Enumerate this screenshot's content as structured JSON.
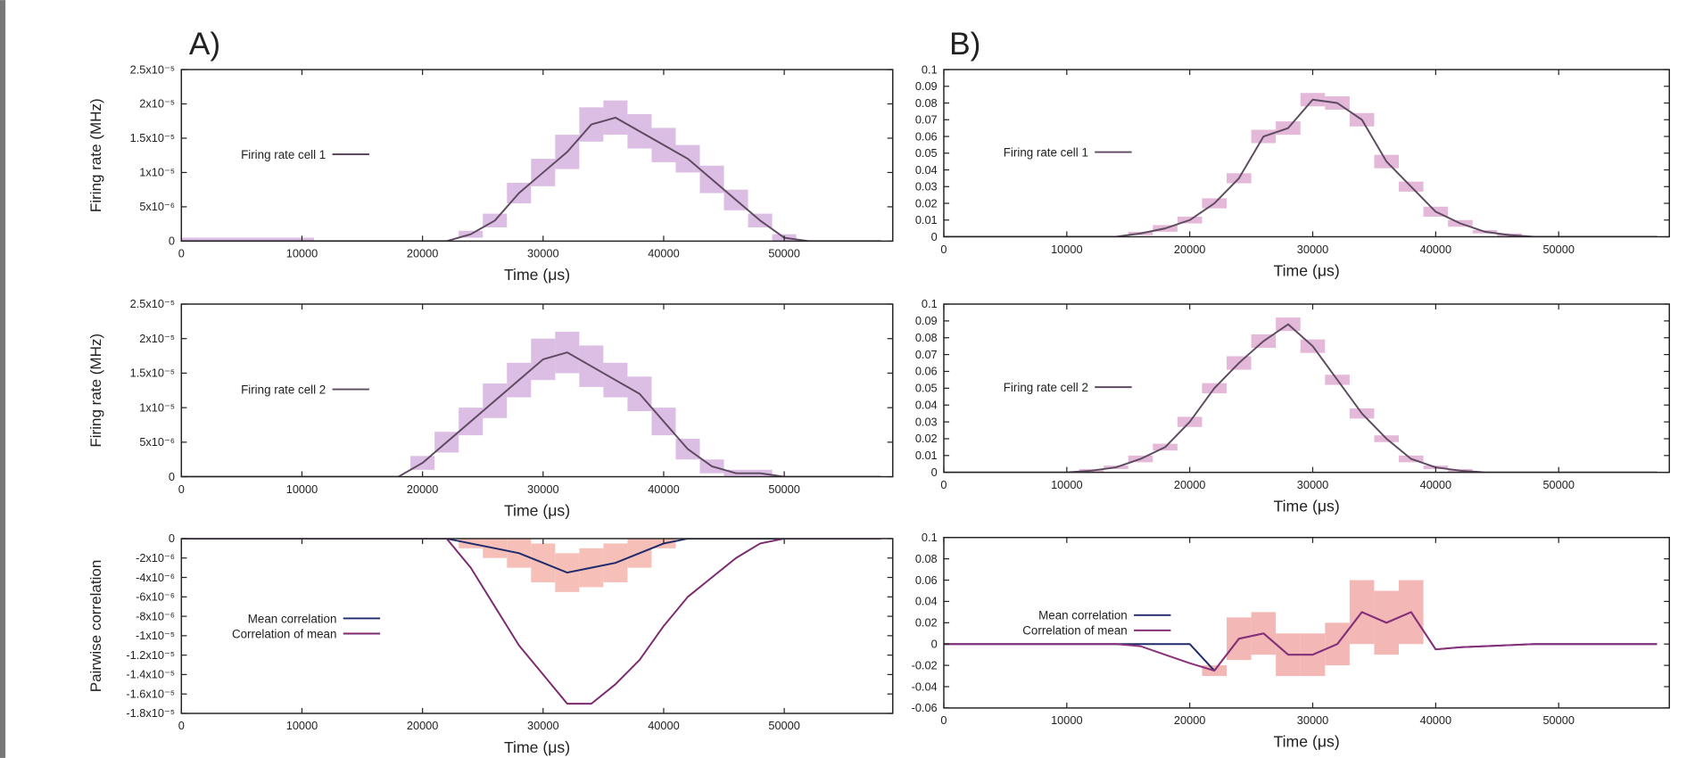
{
  "panel_labels": [
    "A)",
    "B)"
  ],
  "chart_data": [
    {
      "type": "line",
      "xlabel": "Time (μs)",
      "ylabel": "Firing rate (MHz)",
      "xlim": [
        0,
        59000
      ],
      "xticks": [
        0,
        10000,
        20000,
        30000,
        40000,
        50000
      ],
      "ylim": [
        0,
        2.5e-05
      ],
      "yticks": [
        0,
        {
          "value": 5e-06,
          "label": "5x10⁻⁶"
        },
        {
          "value": 1e-05,
          "label": "1x10⁻⁵"
        },
        {
          "value": 1.5e-05,
          "label": "1.5x10⁻⁵"
        },
        {
          "value": 2e-05,
          "label": "2x10⁻⁵"
        },
        {
          "value": 2.5e-05,
          "label": "2.5x10⁻⁵"
        }
      ],
      "x": [
        0,
        2000,
        4000,
        6000,
        8000,
        10000,
        12000,
        14000,
        16000,
        18000,
        20000,
        22000,
        24000,
        26000,
        28000,
        30000,
        32000,
        34000,
        36000,
        38000,
        40000,
        42000,
        44000,
        46000,
        48000,
        50000,
        52000,
        54000,
        56000,
        58000
      ],
      "series": [
        {
          "name": "Firing rate cell 1",
          "color": "#5e4a60",
          "band_color": "#dcbde4",
          "values": [
            0,
            0,
            0,
            0,
            0,
            0,
            0,
            0,
            0,
            0,
            0,
            0,
            1e-06,
            3e-06,
            7e-06,
            1e-05,
            1.3e-05,
            1.7e-05,
            1.8e-05,
            1.6e-05,
            1.4e-05,
            1.2e-05,
            9e-06,
            6e-06,
            3e-06,
            5e-07,
            0,
            0,
            0,
            0
          ],
          "error": [
            5e-07,
            5e-07,
            5e-07,
            5e-07,
            5e-07,
            5e-07,
            0,
            0,
            0,
            0,
            0,
            0,
            5e-07,
            1e-06,
            1.5e-06,
            2e-06,
            2.5e-06,
            2.5e-06,
            2.5e-06,
            2.5e-06,
            2.5e-06,
            2e-06,
            2e-06,
            1.5e-06,
            1e-06,
            5e-07,
            0,
            0,
            0,
            0
          ]
        }
      ]
    },
    {
      "type": "line",
      "xlabel": "Time (μs)",
      "ylabel": "Firing rate (MHz)",
      "xlim": [
        0,
        59000
      ],
      "xticks": [
        0,
        10000,
        20000,
        30000,
        40000,
        50000
      ],
      "ylim": [
        0,
        2.5e-05
      ],
      "yticks": [
        0,
        {
          "value": 5e-06,
          "label": "5x10⁻⁶"
        },
        {
          "value": 1e-05,
          "label": "1x10⁻⁵"
        },
        {
          "value": 1.5e-05,
          "label": "1.5x10⁻⁵"
        },
        {
          "value": 2e-05,
          "label": "2x10⁻⁵"
        },
        {
          "value": 2.5e-05,
          "label": "2.5x10⁻⁵"
        }
      ],
      "x": [
        0,
        2000,
        4000,
        6000,
        8000,
        10000,
        12000,
        14000,
        16000,
        18000,
        20000,
        22000,
        24000,
        26000,
        28000,
        30000,
        32000,
        34000,
        36000,
        38000,
        40000,
        42000,
        44000,
        46000,
        48000,
        50000,
        52000,
        54000,
        56000,
        58000
      ],
      "series": [
        {
          "name": "Firing rate cell 2",
          "color": "#5e4a60",
          "band_color": "#dcbde4",
          "values": [
            0,
            0,
            0,
            0,
            0,
            0,
            0,
            0,
            0,
            0,
            2e-06,
            5e-06,
            8e-06,
            1.1e-05,
            1.4e-05,
            1.7e-05,
            1.8e-05,
            1.6e-05,
            1.4e-05,
            1.2e-05,
            8e-06,
            4e-06,
            1.5e-06,
            5e-07,
            5e-07,
            0,
            0,
            0,
            0,
            0
          ],
          "error": [
            0,
            0,
            0,
            0,
            0,
            0,
            0,
            0,
            0,
            0,
            1e-06,
            1.5e-06,
            2e-06,
            2.5e-06,
            2.5e-06,
            3e-06,
            3e-06,
            3e-06,
            2.5e-06,
            2.5e-06,
            2e-06,
            1.5e-06,
            1e-06,
            5e-07,
            5e-07,
            0,
            0,
            0,
            0,
            0
          ]
        }
      ]
    },
    {
      "type": "line",
      "xlabel": "Time (μs)",
      "ylabel": "Pairwise correlation",
      "xlim": [
        0,
        59000
      ],
      "xticks": [
        0,
        10000,
        20000,
        30000,
        40000,
        50000
      ],
      "ylim": [
        -1.8e-05,
        0
      ],
      "yticks": [
        0,
        {
          "value": -2e-06,
          "label": "-2x10⁻⁶"
        },
        {
          "value": -4e-06,
          "label": "-4x10⁻⁶"
        },
        {
          "value": -6e-06,
          "label": "-6x10⁻⁶"
        },
        {
          "value": -8e-06,
          "label": "-8x10⁻⁶"
        },
        {
          "value": -1e-05,
          "label": "-1x10⁻⁵"
        },
        {
          "value": -1.2e-05,
          "label": "-1.2x10⁻⁵"
        },
        {
          "value": -1.4e-05,
          "label": "-1.4x10⁻⁵"
        },
        {
          "value": -1.6e-05,
          "label": "-1.6x10⁻⁵"
        },
        {
          "value": -1.8e-05,
          "label": "-1.8x10⁻⁵"
        }
      ],
      "x": [
        0,
        2000,
        4000,
        6000,
        8000,
        10000,
        12000,
        14000,
        16000,
        18000,
        20000,
        22000,
        24000,
        26000,
        28000,
        30000,
        32000,
        34000,
        36000,
        38000,
        40000,
        42000,
        44000,
        46000,
        48000,
        50000,
        52000,
        54000,
        56000,
        58000
      ],
      "series": [
        {
          "name": "Mean correlation",
          "color": "#1f2a6b",
          "band_color": "#f6c0b8",
          "values": [
            0,
            0,
            0,
            0,
            0,
            0,
            0,
            0,
            0,
            0,
            0,
            0,
            -5e-07,
            -1e-06,
            -1.5e-06,
            -2.5e-06,
            -3.5e-06,
            -3e-06,
            -2.5e-06,
            -1.5e-06,
            -5e-07,
            0,
            0,
            0,
            0,
            0,
            0,
            0,
            0,
            0
          ],
          "error": [
            0,
            0,
            0,
            0,
            0,
            0,
            0,
            0,
            0,
            0,
            0,
            0,
            5e-07,
            1e-06,
            1.5e-06,
            2e-06,
            2e-06,
            2e-06,
            2e-06,
            1.5e-06,
            5e-07,
            0,
            0,
            0,
            0,
            0,
            0,
            0,
            0,
            0
          ]
        },
        {
          "name": "Correlation of mean",
          "color": "#7b2a6e",
          "values": [
            0,
            0,
            0,
            0,
            0,
            0,
            0,
            0,
            0,
            0,
            0,
            0,
            -3e-06,
            -7e-06,
            -1.1e-05,
            -1.4e-05,
            -1.7e-05,
            -1.7e-05,
            -1.5e-05,
            -1.25e-05,
            -9e-06,
            -6e-06,
            -4e-06,
            -2e-06,
            -5e-07,
            0,
            0,
            0,
            0,
            0
          ]
        }
      ]
    },
    {
      "type": "line",
      "xlabel": "Time (μs)",
      "xlim": [
        0,
        59000
      ],
      "xticks": [
        0,
        10000,
        20000,
        30000,
        40000,
        50000
      ],
      "ylim": [
        0,
        0.1
      ],
      "yticks": [
        0,
        0.01,
        0.02,
        0.03,
        0.04,
        0.05,
        0.06,
        0.07,
        0.08,
        0.09,
        0.1
      ],
      "x": [
        0,
        2000,
        4000,
        6000,
        8000,
        10000,
        12000,
        14000,
        16000,
        18000,
        20000,
        22000,
        24000,
        26000,
        28000,
        30000,
        32000,
        34000,
        36000,
        38000,
        40000,
        42000,
        44000,
        46000,
        48000,
        50000,
        52000,
        54000,
        56000,
        58000
      ],
      "series": [
        {
          "name": "Firing rate cell 1",
          "color": "#5e4a60",
          "band_color": "#e3b8d8",
          "values": [
            0,
            0,
            0,
            0,
            0,
            0,
            0,
            0,
            0.002,
            0.005,
            0.01,
            0.02,
            0.035,
            0.06,
            0.065,
            0.082,
            0.08,
            0.07,
            0.045,
            0.03,
            0.015,
            0.008,
            0.003,
            0.001,
            0,
            0,
            0,
            0,
            0,
            0
          ],
          "error": [
            0,
            0,
            0,
            0,
            0,
            0,
            0,
            0,
            0.001,
            0.002,
            0.002,
            0.003,
            0.003,
            0.004,
            0.004,
            0.004,
            0.004,
            0.004,
            0.004,
            0.003,
            0.003,
            0.002,
            0.001,
            0.001,
            0,
            0,
            0,
            0,
            0,
            0
          ]
        }
      ]
    },
    {
      "type": "line",
      "xlabel": "Time (μs)",
      "xlim": [
        0,
        59000
      ],
      "xticks": [
        0,
        10000,
        20000,
        30000,
        40000,
        50000
      ],
      "ylim": [
        0,
        0.1
      ],
      "yticks": [
        0,
        0.01,
        0.02,
        0.03,
        0.04,
        0.05,
        0.06,
        0.07,
        0.08,
        0.09,
        0.1
      ],
      "x": [
        0,
        2000,
        4000,
        6000,
        8000,
        10000,
        12000,
        14000,
        16000,
        18000,
        20000,
        22000,
        24000,
        26000,
        28000,
        30000,
        32000,
        34000,
        36000,
        38000,
        40000,
        42000,
        44000,
        46000,
        48000,
        50000,
        52000,
        54000,
        56000,
        58000
      ],
      "series": [
        {
          "name": "Firing rate cell 2",
          "color": "#5e4a60",
          "band_color": "#e3b8d8",
          "values": [
            0,
            0,
            0,
            0,
            0,
            0,
            0.001,
            0.003,
            0.008,
            0.015,
            0.03,
            0.05,
            0.065,
            0.078,
            0.088,
            0.075,
            0.055,
            0.035,
            0.02,
            0.008,
            0.003,
            0.001,
            0,
            0,
            0,
            0,
            0,
            0,
            0,
            0
          ],
          "error": [
            0,
            0,
            0,
            0,
            0,
            0,
            0.001,
            0.001,
            0.002,
            0.002,
            0.003,
            0.003,
            0.004,
            0.004,
            0.004,
            0.004,
            0.003,
            0.003,
            0.002,
            0.002,
            0.001,
            0.001,
            0,
            0,
            0,
            0,
            0,
            0,
            0,
            0
          ]
        }
      ]
    },
    {
      "type": "line",
      "xlabel": "Time (μs)",
      "xlim": [
        0,
        59000
      ],
      "xticks": [
        0,
        10000,
        20000,
        30000,
        40000,
        50000
      ],
      "ylim": [
        -0.06,
        0.1
      ],
      "yticks": [
        -0.06,
        -0.04,
        -0.02,
        0,
        0.02,
        0.04,
        0.06,
        0.08,
        0.1
      ],
      "x": [
        0,
        2000,
        4000,
        6000,
        8000,
        10000,
        12000,
        14000,
        16000,
        18000,
        20000,
        22000,
        24000,
        26000,
        28000,
        30000,
        32000,
        34000,
        36000,
        38000,
        40000,
        42000,
        44000,
        46000,
        48000,
        50000,
        52000,
        54000,
        56000,
        58000
      ],
      "series": [
        {
          "name": "Mean correlation",
          "color": "#1f2a6b",
          "band_color": "#f3b8b6",
          "values": [
            0,
            0,
            0,
            0,
            0,
            0,
            0,
            0,
            0,
            0,
            0,
            -0.025,
            0.005,
            0.01,
            -0.01,
            -0.01,
            0,
            0.03,
            0.02,
            0.03,
            -0.005,
            -0.003,
            -0.002,
            -0.001,
            0,
            0,
            0,
            0,
            0,
            0
          ],
          "error": [
            0,
            0,
            0,
            0,
            0,
            0,
            0,
            0,
            0,
            0,
            0,
            0.005,
            0.02,
            0.02,
            0.02,
            0.02,
            0.02,
            0.03,
            0.03,
            0.03,
            0,
            0,
            0,
            0,
            0,
            0,
            0,
            0,
            0,
            0
          ]
        },
        {
          "name": "Correlation of mean",
          "color": "#8a2f7a",
          "values": [
            0,
            0,
            0,
            0,
            0,
            0,
            0,
            0,
            -0.002,
            -0.01,
            -0.018,
            -0.025,
            0.005,
            0.01,
            -0.01,
            -0.01,
            0,
            0.03,
            0.02,
            0.03,
            -0.005,
            -0.003,
            -0.002,
            -0.001,
            0,
            0,
            0,
            0,
            0,
            0
          ]
        }
      ]
    }
  ]
}
